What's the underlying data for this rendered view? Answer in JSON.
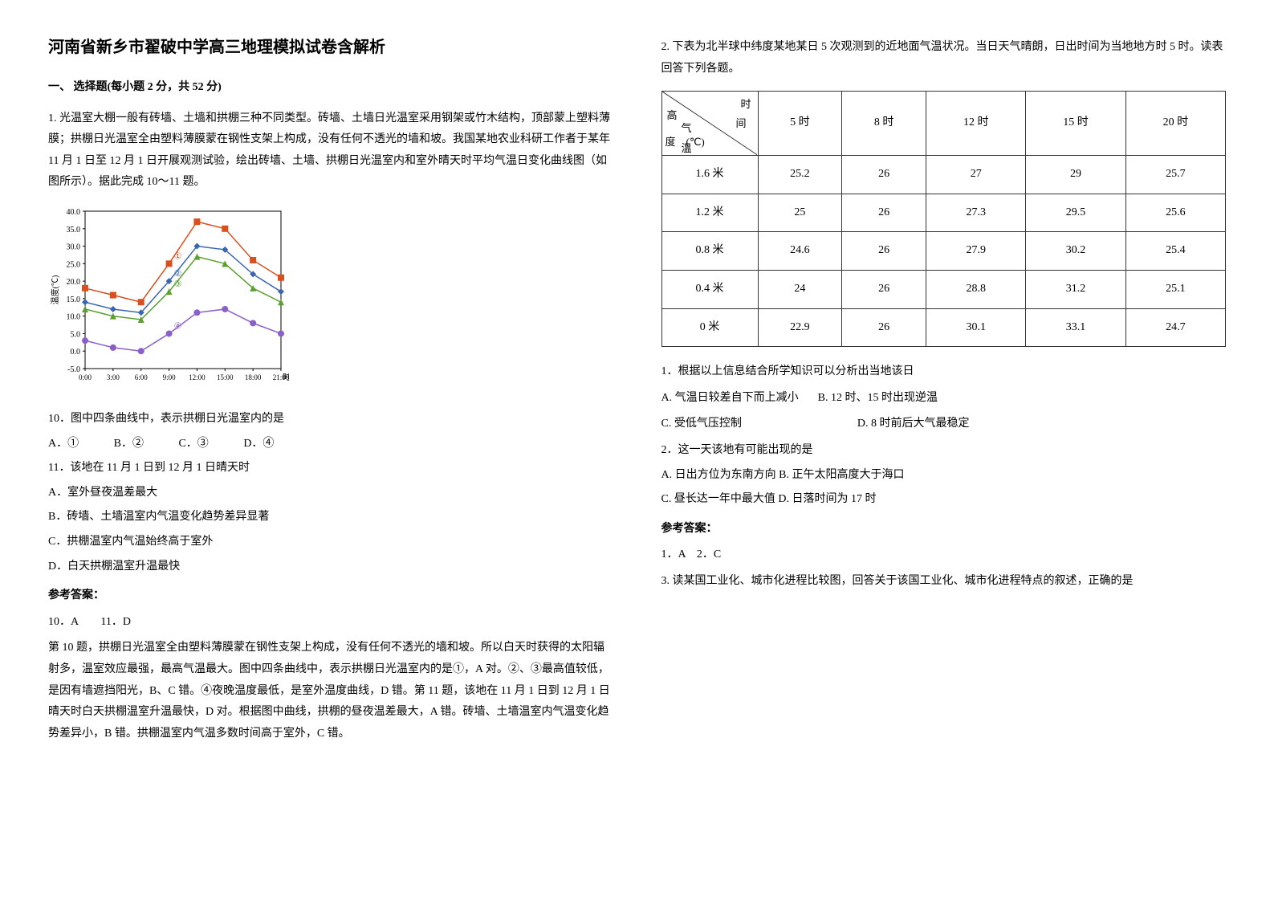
{
  "left": {
    "title": "河南省新乡市翟破中学高三地理模拟试卷含解析",
    "section1": "一、 选择题(每小题 2 分，共 52 分)",
    "q1_intro": "1. 光温室大棚一般有砖墙、土墙和拱棚三种不同类型。砖墙、土墙日光温室采用钢架或竹木结构，顶部蒙上塑料薄膜；拱棚日光温室全由塑料薄膜蒙在钢性支架上构成，没有任何不透光的墙和坡。我国某地农业科研工作者于某年 11 月 1 日至 12 月 1 日开展观测试验，绘出砖墙、土墙、拱棚日光温室内和室外晴天时平均气温日变化曲线图（如图所示）。据此完成 10～11 题。",
    "chart": {
      "type": "line",
      "x_labels": [
        "0:00",
        "3:00",
        "6:00",
        "9:00",
        "12:00",
        "15:00",
        "18:00",
        "21:00"
      ],
      "x_title": "时间",
      "y_title": "温度(℃)",
      "ylim": [
        -5,
        40
      ],
      "ytick_step": 5,
      "background_color": "#ffffff",
      "grid_color": "#cccccc",
      "axis_color": "#000000",
      "series": [
        {
          "name": "①",
          "color": "#d94f1e",
          "marker": "square",
          "values": [
            18,
            16,
            14,
            25,
            37,
            35,
            26,
            21
          ]
        },
        {
          "name": "②",
          "color": "#3a66b0",
          "marker": "diamond",
          "values": [
            14,
            12,
            11,
            20,
            30,
            29,
            22,
            17
          ]
        },
        {
          "name": "③",
          "color": "#5aa02c",
          "marker": "triangle",
          "values": [
            12,
            10,
            9,
            17,
            27,
            25,
            18,
            14
          ]
        },
        {
          "name": "④",
          "color": "#8a5fc7",
          "marker": "circle",
          "values": [
            3,
            1,
            0,
            5,
            11,
            12,
            8,
            5
          ]
        }
      ],
      "title_fontsize": 12,
      "label_fontsize": 11,
      "line_width": 1.5,
      "marker_size": 4
    },
    "q10": "10．图中四条曲线中，表示拱棚日光温室内的是",
    "q10_opts": {
      "A": "A．①",
      "B": "B．②",
      "C": "C．③",
      "D": "D．④"
    },
    "q11": "11．该地在 11 月 1 日到 12 月 1 日晴天时",
    "q11_opts": {
      "A": "A．室外昼夜温差最大",
      "B": "B．砖墙、土墙温室内气温变化趋势差异显著",
      "C": "C．拱棚温室内气温始终高于室外",
      "D": "D．白天拱棚温室升温最快"
    },
    "ans_label": "参考答案：",
    "ans": "10．A　　11．D",
    "explain": "第 10 题，拱棚日光温室全由塑料薄膜蒙在钢性支架上构成，没有任何不透光的墙和坡。所以白天时获得的太阳辐射多，温室效应最强，最高气温最大。图中四条曲线中，表示拱棚日光温室内的是①，A 对。②、③最高值较低，是因有墙遮挡阳光，B、C 错。④夜晚温度最低，是室外温度曲线，D 错。第 11 题，该地在 11 月 1 日到 12 月 1 日晴天时白天拱棚温室升温最快，D 对。根据图中曲线，拱棚的昼夜温差最大，A 错。砖墙、土墙温室内气温变化趋势差异小，B 错。拱棚温室内气温多数时间高于室外，C 错。"
  },
  "right": {
    "q2_intro": "2. 下表为北半球中纬度某地某日 5 次观测到的近地面气温状况。当日天气晴朗，日出时间为当地地方时 5 时。读表回答下列各题。",
    "table": {
      "type": "table",
      "header_top": "时",
      "header_mid": "间",
      "header_left1": "高",
      "header_left2": "气",
      "header_left3": "温",
      "header_bot": "(℃)",
      "header_left_side": "度",
      "columns": [
        "5 时",
        "8 时",
        "12 时",
        "15 时",
        "20 时"
      ],
      "rows": [
        {
          "label": "1.6 米",
          "cells": [
            "25.2",
            "26",
            "27",
            "29",
            "25.7"
          ]
        },
        {
          "label": "1.2 米",
          "cells": [
            "25",
            "26",
            "27.3",
            "29.5",
            "25.6"
          ]
        },
        {
          "label": "0.8 米",
          "cells": [
            "24.6",
            "26",
            "27.9",
            "30.2",
            "25.4"
          ]
        },
        {
          "label": "0.4 米",
          "cells": [
            "24",
            "26",
            "28.8",
            "31.2",
            "25.1"
          ]
        },
        {
          "label": "0 米",
          "cells": [
            "22.9",
            "26",
            "30.1",
            "33.1",
            "24.7"
          ]
        }
      ],
      "border_color": "#333333",
      "cell_padding": 10,
      "font_size": 14
    },
    "sub1": "1．根据以上信息结合所学知识可以分析出当地该日",
    "sub1_opts": {
      "A": "A. 气温日较差自下而上减小",
      "B": "B. 12 时、15 时出现逆温",
      "C": "C. 受低气压控制",
      "D": "D. 8 时前后大气最稳定"
    },
    "sub2": "2．这一天该地有可能出现的是",
    "sub2_opts": {
      "A": "A. 日出方位为东南方向",
      "B": "B. 正午太阳高度大于海口",
      "C": "C. 昼长达一年中最大值",
      "D": "D. 日落时间为 17 时"
    },
    "ans_label": "参考答案：",
    "ans": "1．A　2．C",
    "q3": "3. 读某国工业化、城市化进程比较图，回答关于该国工业化、城市化进程特点的叙述，正确的是"
  }
}
